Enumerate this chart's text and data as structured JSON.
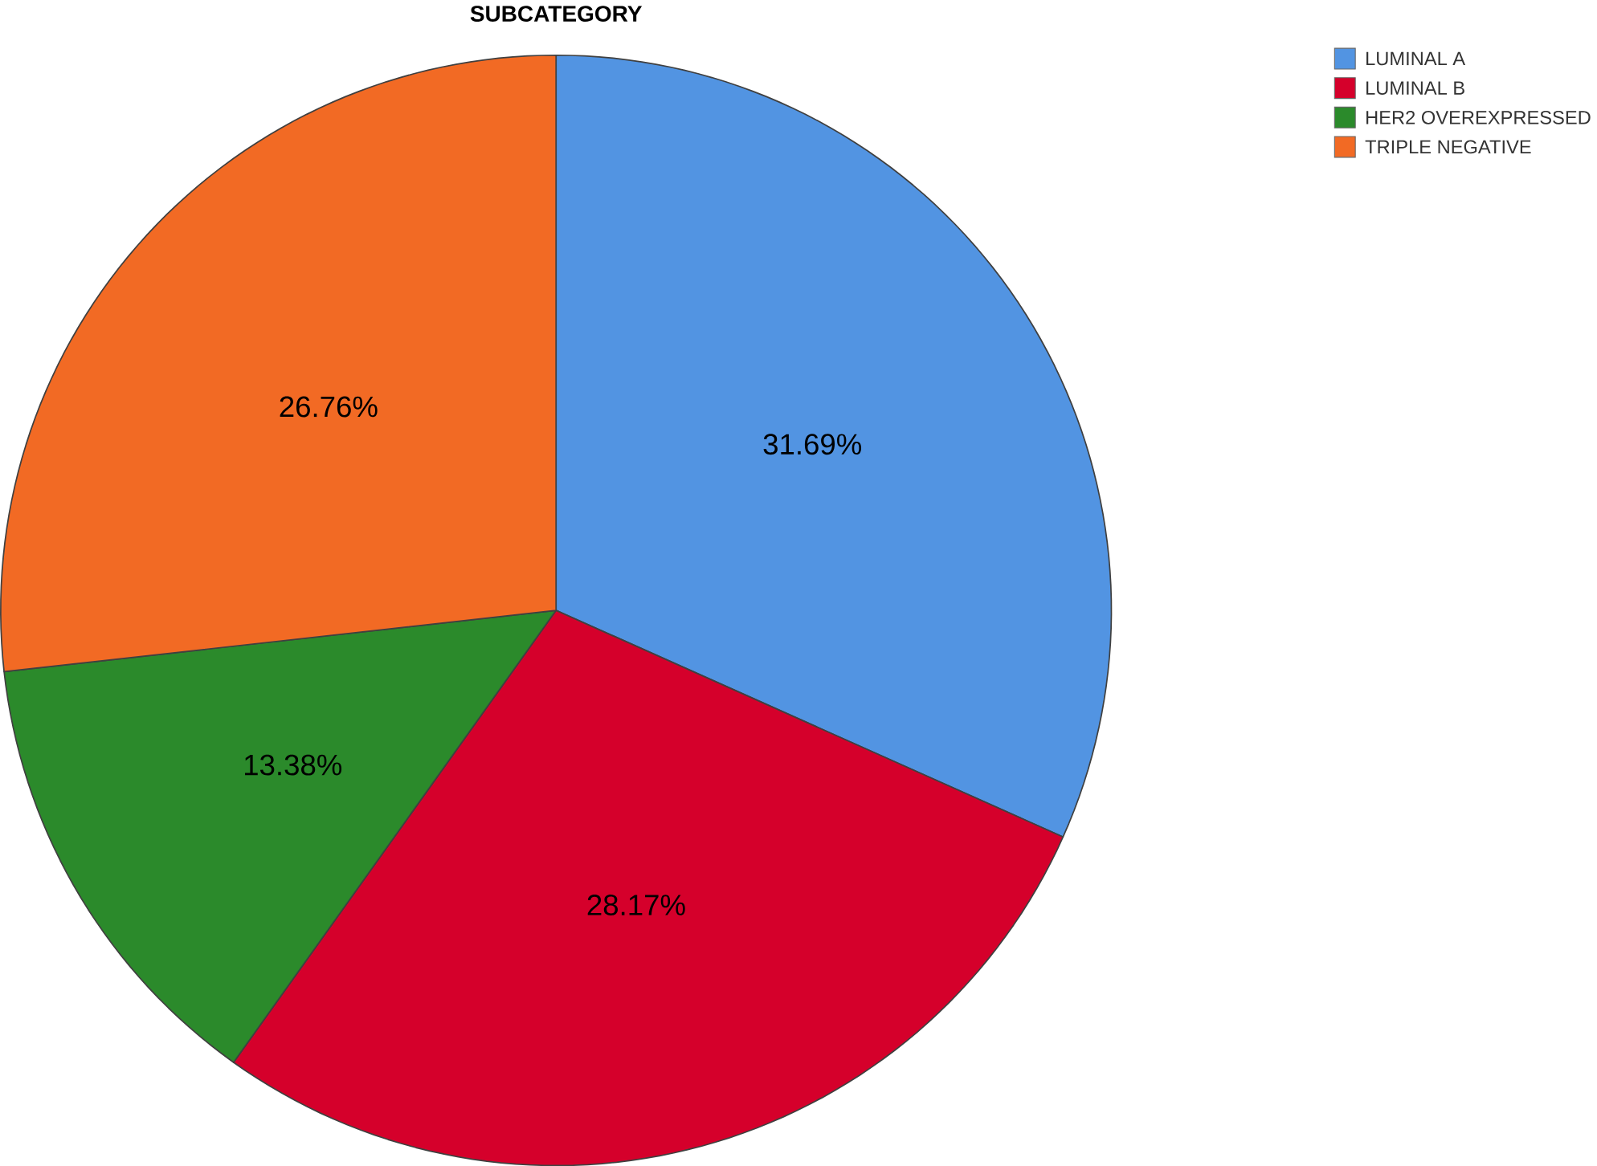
{
  "chart_data": {
    "type": "pie",
    "title": "SUBCATEGORY",
    "categories": [
      "LUMINAL A",
      "LUMINAL B",
      "HER2 OVEREXPRESSED",
      "TRIPLE NEGATIVE"
    ],
    "values": [
      31.69,
      28.17,
      13.38,
      26.76
    ],
    "value_labels": [
      "31.69%",
      "28.17%",
      "13.38%",
      "26.76%"
    ],
    "colors": [
      "#5294e2",
      "#d5002b",
      "#2b8a2b",
      "#f26a24"
    ],
    "legend": "top right"
  }
}
